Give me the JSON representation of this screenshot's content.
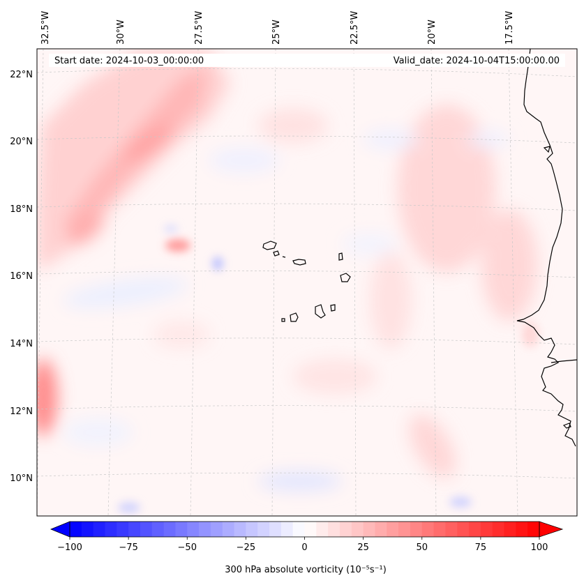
{
  "map": {
    "start_date_text": "Start date: 2024-10-03_00:00:00",
    "valid_date_text": "Valid_date: 2024-10-04T15:00:00.00",
    "lon_labels": [
      "32.5°W",
      "30°W",
      "27.5°W",
      "25°W",
      "22.5°W",
      "20°W",
      "17.5°W"
    ],
    "lat_labels": [
      "22°N",
      "20°N",
      "18°N",
      "16°N",
      "14°N",
      "12°N",
      "10°N"
    ],
    "region": "Cabo Verde islands and West African coast"
  },
  "colorbar": {
    "label": "300 hPa absolute vorticity (10⁻⁵s⁻¹)",
    "tick_labels": [
      "−100",
      "−75",
      "−50",
      "−25",
      "0",
      "25",
      "50",
      "75",
      "100"
    ],
    "min": -100,
    "max": 100,
    "neg_color": "#0000ff",
    "pos_color": "#ff0000",
    "mid_color": "#ffffff"
  }
}
